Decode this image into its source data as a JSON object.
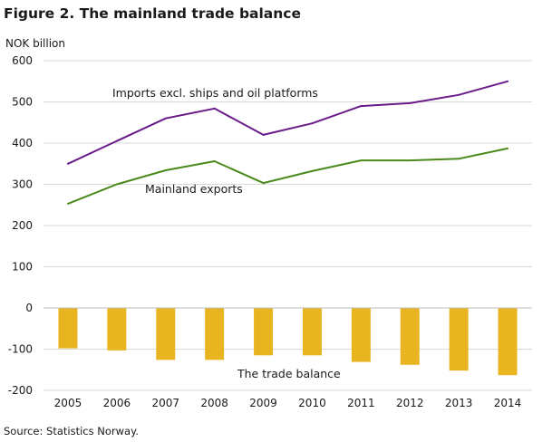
{
  "chart_data": {
    "type": "bar+line",
    "title": "Figure 2. The mainland trade balance",
    "ylabel": "NOK billion",
    "source": "Source: Statistics Norway.",
    "categories": [
      "2005",
      "2006",
      "2007",
      "2008",
      "2009",
      "2010",
      "2011",
      "2012",
      "2013",
      "2014"
    ],
    "ylim": [
      -200,
      600
    ],
    "yticks": [
      600,
      500,
      400,
      300,
      200,
      100,
      0,
      -100,
      -200
    ],
    "grid": true,
    "series": [
      {
        "name": "Imports excl. ships and oil platforms",
        "type": "line",
        "color": "#6a1b8a",
        "values": [
          350,
          405,
          460,
          484,
          420,
          448,
          490,
          497,
          517,
          550
        ]
      },
      {
        "name": "Mainland exports",
        "type": "line",
        "color": "#4a8a1c",
        "values": [
          253,
          300,
          334,
          356,
          303,
          332,
          358,
          358,
          362,
          387
        ]
      },
      {
        "name": "The trade balance",
        "type": "bar",
        "color": "#e8b521",
        "values": [
          -98,
          -103,
          -126,
          -126,
          -115,
          -115,
          -131,
          -138,
          -152,
          -163
        ]
      }
    ]
  }
}
